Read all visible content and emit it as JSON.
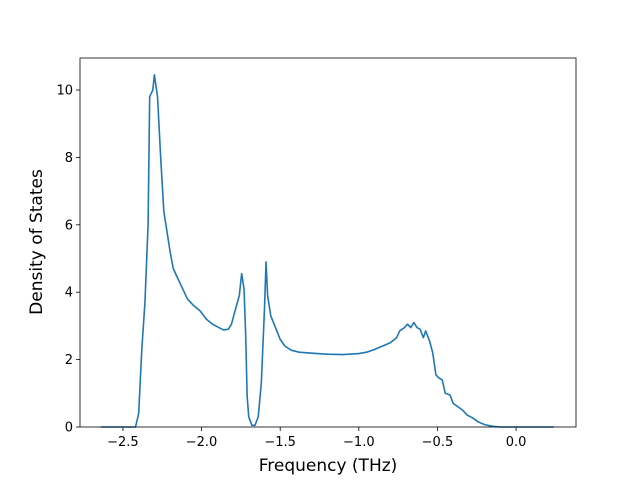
{
  "chart_data": {
    "type": "line",
    "xlabel": "Frequency (THz)",
    "ylabel": "Density of States",
    "x": [
      -2.64,
      -2.42,
      -2.4,
      -2.38,
      -2.36,
      -2.34,
      -2.33,
      -2.31,
      -2.3,
      -2.28,
      -2.26,
      -2.24,
      -2.22,
      -2.2,
      -2.18,
      -2.15,
      -2.12,
      -2.09,
      -2.05,
      -2.01,
      -1.97,
      -1.93,
      -1.89,
      -1.86,
      -1.83,
      -1.81,
      -1.79,
      -1.76,
      -1.745,
      -1.73,
      -1.72,
      -1.71,
      -1.7,
      -1.68,
      -1.66,
      -1.64,
      -1.62,
      -1.6,
      -1.59,
      -1.58,
      -1.56,
      -1.53,
      -1.5,
      -1.47,
      -1.43,
      -1.38,
      -1.3,
      -1.2,
      -1.1,
      -1.0,
      -0.95,
      -0.9,
      -0.85,
      -0.8,
      -0.76,
      -0.74,
      -0.71,
      -0.69,
      -0.67,
      -0.65,
      -0.63,
      -0.61,
      -0.59,
      -0.575,
      -0.55,
      -0.53,
      -0.51,
      -0.49,
      -0.47,
      -0.45,
      -0.42,
      -0.4,
      -0.37,
      -0.34,
      -0.31,
      -0.28,
      -0.24,
      -0.2,
      -0.15,
      -0.1,
      0.24
    ],
    "series": [
      {
        "name": "DOS",
        "color": "#1f77b4",
        "values": [
          0,
          0,
          0.4,
          2.3,
          3.7,
          6.0,
          9.8,
          10.0,
          10.45,
          9.8,
          8.0,
          6.4,
          5.8,
          5.2,
          4.7,
          4.4,
          4.1,
          3.8,
          3.6,
          3.45,
          3.2,
          3.05,
          2.95,
          2.88,
          2.9,
          3.05,
          3.4,
          3.9,
          4.55,
          4.1,
          2.8,
          0.9,
          0.3,
          0.05,
          0.05,
          0.3,
          1.3,
          3.5,
          4.9,
          3.9,
          3.3,
          2.95,
          2.6,
          2.4,
          2.28,
          2.22,
          2.19,
          2.16,
          2.15,
          2.18,
          2.22,
          2.3,
          2.4,
          2.5,
          2.65,
          2.85,
          2.95,
          3.05,
          2.95,
          3.1,
          2.95,
          2.9,
          2.65,
          2.85,
          2.55,
          2.2,
          1.55,
          1.45,
          1.4,
          1.0,
          0.95,
          0.7,
          0.6,
          0.5,
          0.35,
          0.28,
          0.15,
          0.07,
          0.02,
          0,
          0
        ]
      }
    ],
    "xlim": [
      -2.773,
      0.381
    ],
    "xticks": [
      {
        "value": -2.5,
        "label": "−2.5"
      },
      {
        "value": -2.0,
        "label": "−2.0"
      },
      {
        "value": -1.5,
        "label": "−1.5"
      },
      {
        "value": -1.0,
        "label": "−1.0"
      },
      {
        "value": -0.5,
        "label": "−0.5"
      },
      {
        "value": 0,
        "label": "0.0"
      }
    ],
    "ylim": [
      0,
      10.95
    ],
    "yticks": [
      0,
      2,
      4,
      6,
      8,
      10
    ],
    "grid": false
  }
}
